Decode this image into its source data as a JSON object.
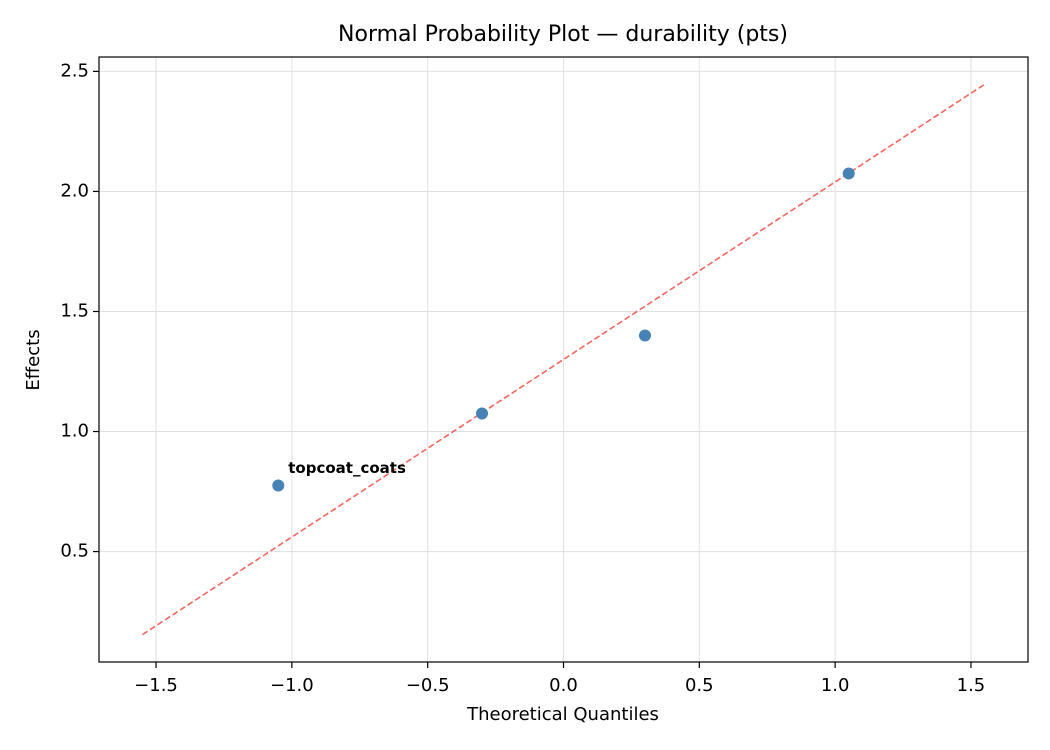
{
  "chart_data": {
    "type": "scatter",
    "title": "Normal Probability Plot — durability (pts)",
    "x_label": "Theoretical Quantiles",
    "y_label": "Effects",
    "xlim": [
      -1.71,
      1.71
    ],
    "ylim": [
      0.04,
      2.56
    ],
    "xticks": [
      {
        "value": -1.5,
        "label": "−1.5"
      },
      {
        "value": -1.0,
        "label": "−1.0"
      },
      {
        "value": -0.5,
        "label": "−0.5"
      },
      {
        "value": 0,
        "label": "0.0"
      },
      0.5,
      {
        "value": 1.0,
        "label": "1.0"
      },
      1.5
    ],
    "yticks": [
      0.5,
      {
        "value": 1.0,
        "label": "1.0"
      },
      1.5,
      {
        "value": 2.0,
        "label": "2.0"
      },
      2.5
    ],
    "grid": true,
    "series": [
      {
        "type": "scatter",
        "color": "#4682b4",
        "x": [
          -1.05,
          -0.3,
          0.3,
          1.05
        ],
        "values": [
          0.775,
          1.075,
          1.4,
          2.075
        ]
      },
      {
        "type": "line",
        "dashed": true,
        "color": "#f2665e",
        "x": [
          -1.55,
          1.55
        ],
        "values": [
          0.154,
          2.446
        ]
      }
    ],
    "annotations": [
      {
        "text": "topcoat_coats",
        "color": "#ff0000",
        "x": -1.05,
        "y": 0.775
      }
    ]
  }
}
